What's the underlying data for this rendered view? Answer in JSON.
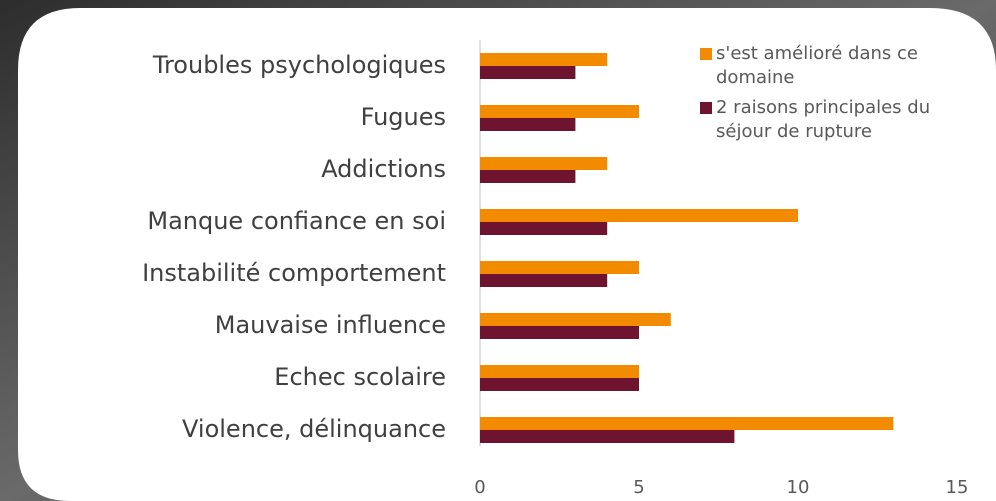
{
  "chart_data": {
    "type": "hbar",
    "categories": [
      "Troubles psychologiques",
      "Fugues",
      "Addictions",
      "Manque confiance en soi",
      "Instabilité comportement",
      "Mauvaise influence",
      "Echec scolaire",
      "Violence, délinquance"
    ],
    "series": [
      {
        "name": "s'est amélioré dans ce domaine",
        "color": "#f38b00",
        "values": [
          4,
          5,
          4,
          10,
          5,
          6,
          5,
          13
        ]
      },
      {
        "name": "2 raisons principales du séjour de rupture",
        "color": "#6e1431",
        "values": [
          3,
          3,
          3,
          4,
          4,
          5,
          5,
          8
        ]
      }
    ],
    "xlim": [
      0,
      15
    ],
    "xticks": [
      0,
      5,
      10,
      15
    ],
    "legend": "top-right"
  }
}
